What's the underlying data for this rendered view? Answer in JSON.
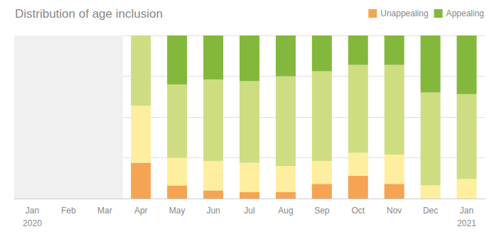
{
  "chart_data": {
    "type": "bar",
    "title": "Distribution of age inclusion",
    "categories": [
      "Jan",
      "Feb",
      "Mar",
      "Apr",
      "May",
      "Jun",
      "Jul",
      "Aug",
      "Sep",
      "Oct",
      "Nov",
      "Dec",
      "Jan"
    ],
    "series": [
      {
        "name": "Unappealing",
        "color": "#f5a454",
        "values": [
          0,
          0,
          0,
          22,
          8,
          5,
          4,
          4,
          9,
          14,
          9,
          0,
          0
        ]
      },
      {
        "color": "#fdeea0",
        "values": [
          0,
          0,
          0,
          35,
          17,
          18,
          18,
          16,
          14,
          14,
          18,
          8,
          12
        ]
      },
      {
        "color": "#cedd82",
        "values": [
          0,
          0,
          0,
          43,
          45,
          50,
          50,
          55,
          55,
          54,
          55,
          57,
          52
        ]
      },
      {
        "name": "Appealing",
        "color": "#84b83c",
        "values": [
          0,
          0,
          0,
          0,
          30,
          27,
          28,
          25,
          22,
          18,
          18,
          35,
          36
        ]
      }
    ],
    "annotations": [
      {
        "text": "2020",
        "x": 0
      },
      {
        "text": "2021",
        "x": 12
      }
    ],
    "stacked": true,
    "ylim": [
      0,
      100
    ],
    "yticks": [
      0,
      25,
      50,
      75,
      100
    ],
    "grid": true,
    "legend": "upper right",
    "tick_labels": "x"
  }
}
